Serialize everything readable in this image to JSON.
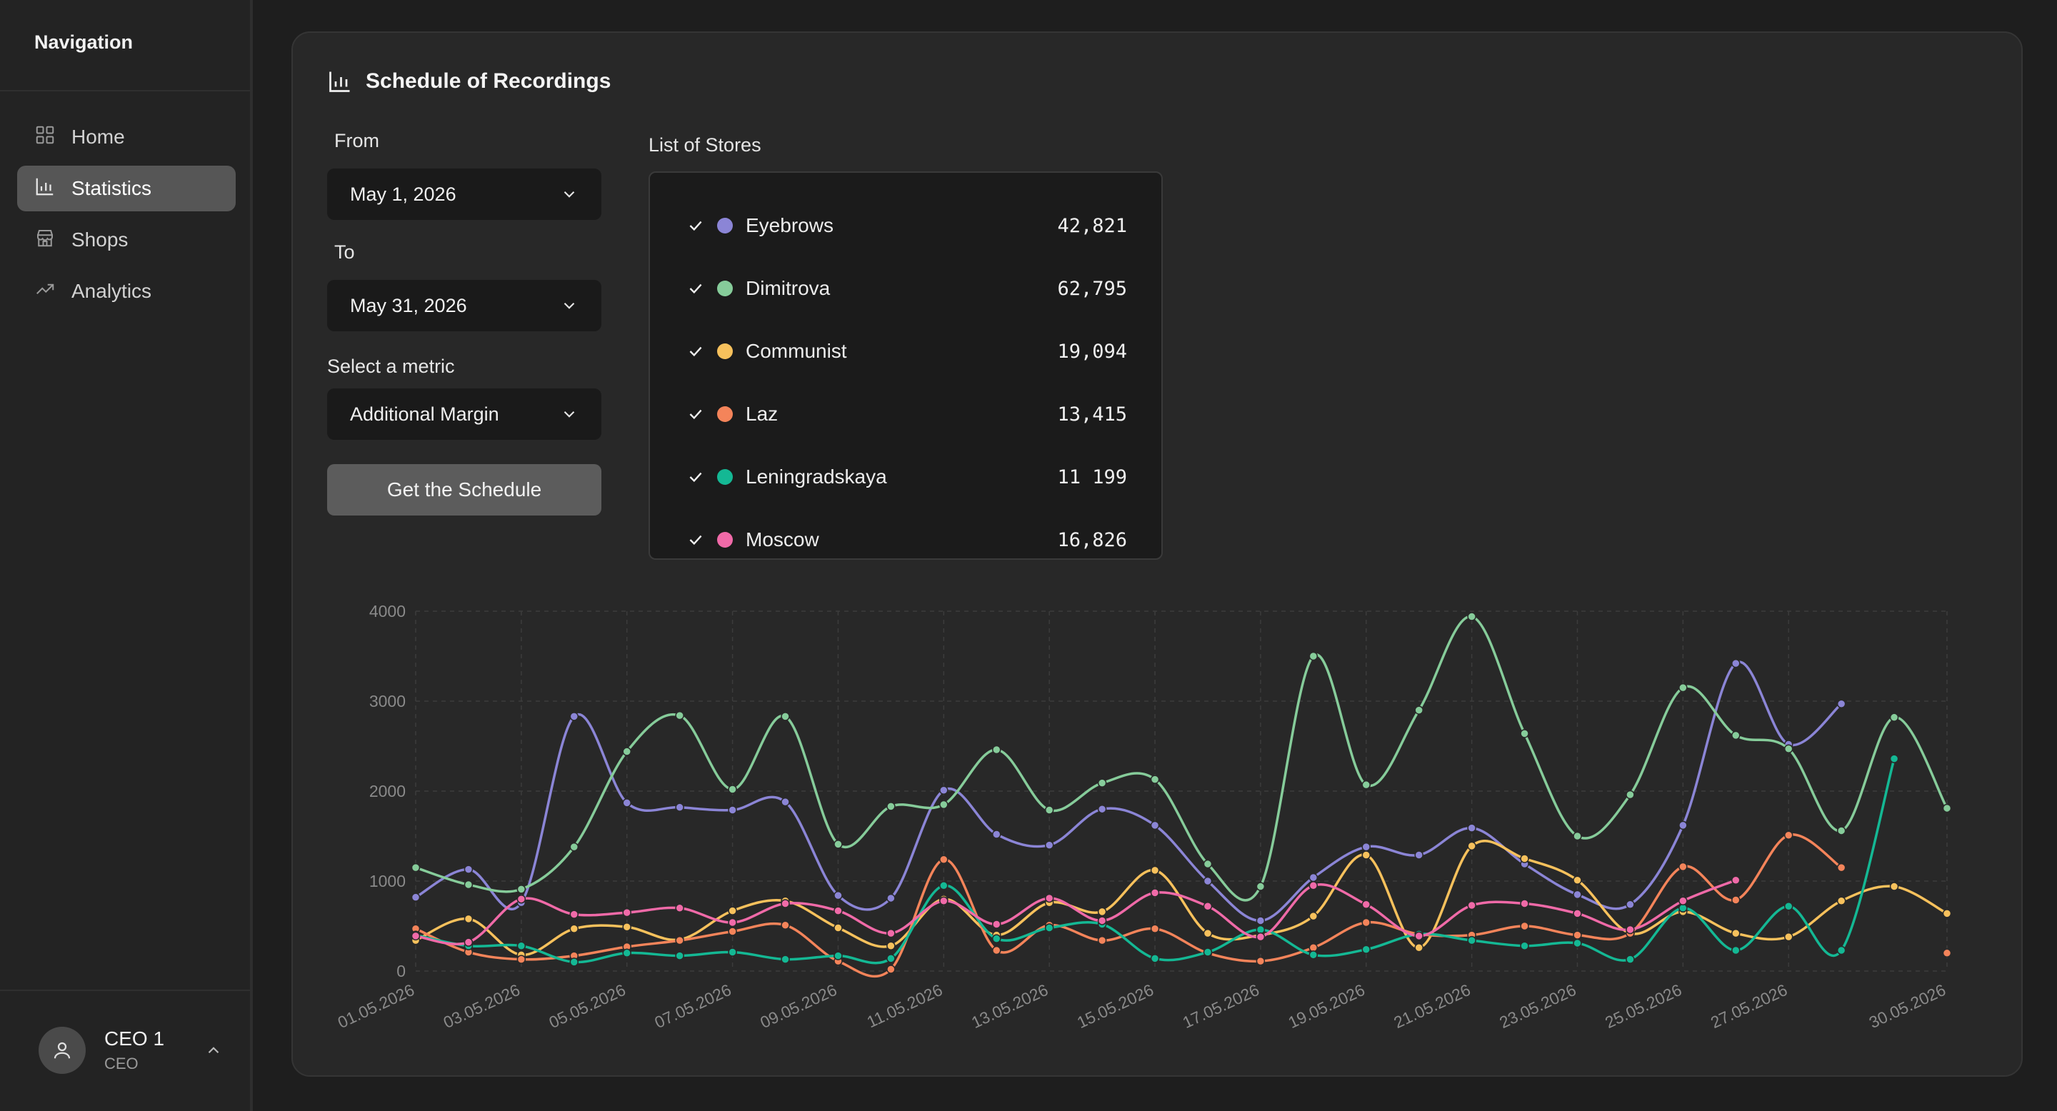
{
  "sidebar": {
    "title": "Navigation",
    "items": [
      {
        "label": "Home",
        "icon": "grid-icon"
      },
      {
        "label": "Statistics",
        "icon": "bar-chart-icon",
        "active": true
      },
      {
        "label": "Shops",
        "icon": "store-icon"
      },
      {
        "label": "Analytics",
        "icon": "trend-icon"
      }
    ],
    "user": {
      "name": "CEO 1",
      "role": "CEO"
    }
  },
  "main": {
    "title": "Schedule of Recordings",
    "from_label": "From",
    "from_value": "May 1, 2026",
    "to_label": "To",
    "to_value": "May 31, 2026",
    "metric_label": "Select a metric",
    "metric_value": "Additional Margin",
    "button_label": "Get the Schedule",
    "stores_label": "List of Stores",
    "stores": [
      {
        "name": "Eyebrows",
        "value": "42,821",
        "color": "#8b85d6",
        "checked": true
      },
      {
        "name": "Dimitrova",
        "value": "62,795",
        "color": "#86cc9a",
        "checked": true
      },
      {
        "name": "Communist",
        "value": "19,094",
        "color": "#f7c15c",
        "checked": true
      },
      {
        "name": "Laz",
        "value": "13,415",
        "color": "#f4845a",
        "checked": true
      },
      {
        "name": "Leningradskaya",
        "value": "11 199",
        "color": "#14b894",
        "checked": true
      },
      {
        "name": "Moscow",
        "value": "16,826",
        "color": "#f06aa8",
        "checked": true
      }
    ]
  },
  "chart_data": {
    "type": "line",
    "ylim": [
      0,
      4000
    ],
    "y_ticks": [
      "0",
      "1000",
      "2000",
      "3000",
      "4000"
    ],
    "x": [
      "01.05.2026",
      "02.05.2026",
      "03.05.2026",
      "04.05.2026",
      "05.05.2026",
      "06.05.2026",
      "07.05.2026",
      "08.05.2026",
      "09.05.2026",
      "10.05.2026",
      "11.05.2026",
      "12.05.2026",
      "13.05.2026",
      "14.05.2026",
      "15.05.2026",
      "16.05.2026",
      "17.05.2026",
      "18.05.2026",
      "19.05.2026",
      "20.05.2026",
      "21.05.2026",
      "22.05.2026",
      "23.05.2026",
      "24.05.2026",
      "25.05.2026",
      "26.05.2026",
      "27.05.2026",
      "28.05.2026",
      "29.05.2026",
      "30.05.2026"
    ],
    "x_tick_labels": [
      "01.05.2026",
      "03.05.2026",
      "05.05.2026",
      "07.05.2026",
      "09.05.2026",
      "11.05.2026",
      "13.05.2026",
      "15.05.2026",
      "17.05.2026",
      "19.05.2026",
      "21.05.2026",
      "23.05.2026",
      "25.05.2026",
      "27.05.2026",
      "30.05.2026"
    ],
    "weekend_labels": [
      "03.05.2026",
      "09.05.2026",
      "17.05.2026",
      "23.05.2026",
      "30.05.2026"
    ],
    "weekend_color": "#e0525a",
    "grid": true,
    "series": [
      {
        "name": "Eyebrows",
        "color": "#8b85d6",
        "values": [
          820,
          1130,
          760,
          2830,
          1870,
          1820,
          1790,
          1880,
          840,
          810,
          2010,
          1520,
          1400,
          1800,
          1620,
          1000,
          560,
          1040,
          1380,
          1290,
          1590,
          1190,
          850,
          740,
          1620,
          3420,
          2520,
          2970,
          null,
          null
        ]
      },
      {
        "name": "Dimitrova",
        "color": "#86cc9a",
        "values": [
          1150,
          960,
          910,
          1380,
          2440,
          2840,
          2020,
          2830,
          1410,
          1830,
          1850,
          2460,
          1790,
          2090,
          2130,
          1190,
          940,
          3500,
          2070,
          2900,
          3940,
          2640,
          1500,
          1960,
          3150,
          2620,
          2470,
          1560,
          2820,
          1810
        ]
      },
      {
        "name": "Communist",
        "color": "#f7c15c",
        "values": [
          340,
          580,
          180,
          470,
          490,
          350,
          670,
          780,
          480,
          280,
          800,
          400,
          760,
          660,
          1120,
          420,
          400,
          610,
          1290,
          260,
          1390,
          1250,
          1010,
          420,
          660,
          420,
          380,
          780,
          940,
          640
        ]
      },
      {
        "name": "Laz",
        "color": "#f4845a",
        "values": [
          470,
          210,
          130,
          170,
          270,
          340,
          440,
          510,
          110,
          20,
          1240,
          230,
          510,
          340,
          470,
          200,
          110,
          260,
          540,
          410,
          400,
          500,
          400,
          420,
          1160,
          790,
          1510,
          1150,
          null,
          200
        ]
      },
      {
        "name": "Leningradskaya",
        "color": "#14b894",
        "values": [
          400,
          280,
          280,
          100,
          200,
          170,
          210,
          130,
          170,
          140,
          950,
          360,
          480,
          520,
          140,
          210,
          460,
          180,
          240,
          410,
          340,
          280,
          310,
          130,
          700,
          230,
          720,
          230,
          2360,
          null
        ]
      },
      {
        "name": "Moscow",
        "color": "#f06aa8",
        "values": [
          390,
          320,
          800,
          630,
          650,
          700,
          540,
          750,
          670,
          420,
          780,
          520,
          810,
          560,
          870,
          720,
          380,
          950,
          740,
          390,
          730,
          750,
          640,
          460,
          780,
          1010,
          null,
          null,
          null,
          null
        ]
      }
    ]
  }
}
